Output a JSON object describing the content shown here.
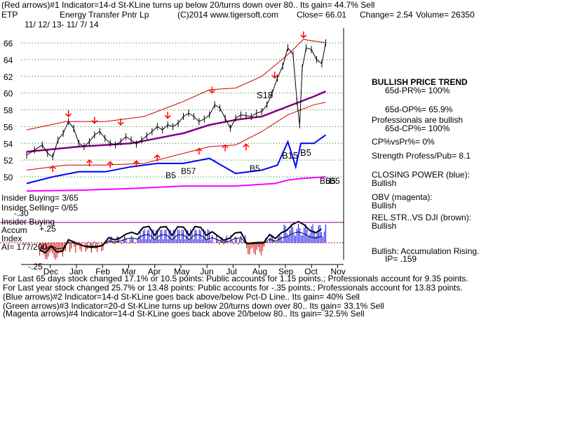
{
  "header": {
    "line1": "(Red arrows)#1 Indicator=14-d St-KLine turns up below 20/turns down over 80.. Its gain= 44.7% Sell",
    "ticker": "ETP",
    "company": "Energy Transfer Pntr Lp",
    "copyright": "(C)2014 www.tigersoft.com",
    "close": "Close=  66.01",
    "change": "Change= 2.54",
    "volume": "Volume=  26350",
    "date_range": "11/ 12/ 13-  11/ 7/ 14"
  },
  "chart_data": {
    "type": "line",
    "title": "",
    "y_ticks": [
      "66",
      "64",
      "62",
      "60",
      "58",
      "56",
      "54",
      "52",
      "50"
    ],
    "ylim": [
      49,
      67
    ],
    "months": [
      "Dec",
      "Jan",
      "Feb",
      "Mar",
      "Apr",
      "May",
      "Jun",
      "Jul",
      "Aug",
      "Sep",
      "Oct",
      "Nov"
    ],
    "x_month_index_range": [
      0,
      12
    ],
    "price_close": [
      [
        0.0,
        52.6
      ],
      [
        0.3,
        53.2
      ],
      [
        0.6,
        53.8
      ],
      [
        0.8,
        52.8
      ],
      [
        1.0,
        52.4
      ],
      [
        1.2,
        54.4
      ],
      [
        1.4,
        55.2
      ],
      [
        1.6,
        56.6
      ],
      [
        1.8,
        55.8
      ],
      [
        2.0,
        54.0
      ],
      [
        2.2,
        53.6
      ],
      [
        2.4,
        54.2
      ],
      [
        2.6,
        55.0
      ],
      [
        2.8,
        55.4
      ],
      [
        3.0,
        54.6
      ],
      [
        3.2,
        54.0
      ],
      [
        3.4,
        53.8
      ],
      [
        3.6,
        54.2
      ],
      [
        3.8,
        54.8
      ],
      [
        4.0,
        54.4
      ],
      [
        4.2,
        53.9
      ],
      [
        4.4,
        54.4
      ],
      [
        4.6,
        54.9
      ],
      [
        4.8,
        55.4
      ],
      [
        5.0,
        56.0
      ],
      [
        5.2,
        55.6
      ],
      [
        5.4,
        56.2
      ],
      [
        5.6,
        56.0
      ],
      [
        5.8,
        56.4
      ],
      [
        6.0,
        57.2
      ],
      [
        6.2,
        57.6
      ],
      [
        6.4,
        57.2
      ],
      [
        6.6,
        56.6
      ],
      [
        6.8,
        56.9
      ],
      [
        7.0,
        57.4
      ],
      [
        7.2,
        58.6
      ],
      [
        7.4,
        58.2
      ],
      [
        7.6,
        57.0
      ],
      [
        7.8,
        55.8
      ],
      [
        8.0,
        57.0
      ],
      [
        8.2,
        57.4
      ],
      [
        8.4,
        57.3
      ],
      [
        8.6,
        57.2
      ],
      [
        8.8,
        57.6
      ],
      [
        9.0,
        57.8
      ],
      [
        9.2,
        58.6
      ],
      [
        9.4,
        60.0
      ],
      [
        9.6,
        61.8
      ],
      [
        9.8,
        63.2
      ],
      [
        10.0,
        65.4
      ],
      [
        10.2,
        64.6
      ],
      [
        10.35,
        59.0
      ],
      [
        10.45,
        56.2
      ],
      [
        10.55,
        63.0
      ],
      [
        10.7,
        65.4
      ],
      [
        10.9,
        65.2
      ],
      [
        11.1,
        64.0
      ],
      [
        11.3,
        63.5
      ],
      [
        11.45,
        66.0
      ]
    ],
    "ma_65d": [
      [
        0.0,
        53.0
      ],
      [
        2.0,
        53.6
      ],
      [
        4.0,
        54.0
      ],
      [
        6.0,
        55.2
      ],
      [
        7.0,
        56.2
      ],
      [
        8.0,
        56.8
      ],
      [
        9.0,
        57.2
      ],
      [
        10.0,
        58.4
      ],
      [
        11.0,
        59.6
      ],
      [
        11.45,
        60.2
      ]
    ],
    "band_upper": [
      [
        0.0,
        55.6
      ],
      [
        1.5,
        56.6
      ],
      [
        3.0,
        56.6
      ],
      [
        4.5,
        57.2
      ],
      [
        6.0,
        59.0
      ],
      [
        7.0,
        60.4
      ],
      [
        8.0,
        60.6
      ],
      [
        9.0,
        62.0
      ],
      [
        10.0,
        64.6
      ],
      [
        10.6,
        66.4
      ],
      [
        11.45,
        66.0
      ]
    ],
    "band_lower": [
      [
        0.0,
        50.8
      ],
      [
        1.5,
        51.4
      ],
      [
        3.0,
        51.4
      ],
      [
        4.5,
        51.6
      ],
      [
        6.0,
        52.8
      ],
      [
        7.0,
        53.6
      ],
      [
        8.0,
        53.8
      ],
      [
        9.0,
        55.4
      ],
      [
        10.0,
        57.4
      ],
      [
        11.0,
        58.6
      ],
      [
        11.45,
        58.9
      ]
    ],
    "closing_power": [
      [
        0.0,
        49.2
      ],
      [
        1.0,
        50.0
      ],
      [
        2.0,
        50.6
      ],
      [
        3.0,
        50.6
      ],
      [
        4.0,
        51.2
      ],
      [
        5.0,
        51.6
      ],
      [
        6.0,
        51.6
      ],
      [
        7.0,
        52.2
      ],
      [
        8.0,
        50.4
      ],
      [
        9.0,
        50.8
      ],
      [
        9.6,
        51.4
      ],
      [
        10.0,
        54.2
      ],
      [
        10.3,
        51.2
      ],
      [
        10.5,
        54.0
      ],
      [
        11.0,
        54.0
      ],
      [
        11.45,
        55.0
      ]
    ],
    "obv": [
      [
        0.0,
        48.3
      ],
      [
        2.0,
        48.4
      ],
      [
        4.0,
        48.6
      ],
      [
        6.0,
        48.9
      ],
      [
        8.0,
        48.9
      ],
      [
        9.5,
        49.2
      ],
      [
        10.0,
        49.6
      ],
      [
        10.5,
        49.8
      ],
      [
        11.0,
        49.9
      ],
      [
        11.45,
        50.0
      ]
    ],
    "labels_price": [
      "S18",
      "B15",
      "B5"
    ],
    "labels_cp": [
      "B5",
      "B57",
      "B5",
      "B5",
      "B5"
    ],
    "labels_cp_alt": [
      "B5"
    ],
    "accum_index": {
      "labels": [
        "Insider Buying",
        "Accum",
        "Index",
        "+.25"
      ],
      "value_label": "AI= 177/200",
      "neg_label": "-.25",
      "neg_label2": "-.30",
      "zero_line": 0
    },
    "insider": {
      "buying": "Insider Buying= 3/65",
      "selling": "Insider Selling= 0/65"
    }
  },
  "right_panel": {
    "trend": "BULLISH PRICE TREND",
    "pr": "65d-PR%= 100%",
    "op": "65d-OP%= 65.9%",
    "prof": "Professionals are bullish",
    "cp": "65d-CP%= 100%",
    "cpvspr": "CP%vsPr%=  0%",
    "strength": "Strength Profess/Pub= 8.1",
    "closing_power": "CLOSING POWER (blue):",
    "cp_state": "Bullish",
    "obv": "OBV (magenta):",
    "obv_state": "Bullish",
    "relstr": "REL.STR..VS DJI (brown):",
    "relstr_state": "Bullish",
    "accum": "Bullish: Accumulation Rising.",
    "ip": "IP=  .159"
  },
  "footer": {
    "line1": "For Last 65 days stock changed  17.1% or  10.5 points:  Public accounts for  1.15 points.;  Professionals account for  9.35 points.",
    "line2": "For Last year stock changed  25.7% or  13.48 points:  Public accounts for -.35 points.;  Professionals account for  13.83 points.",
    "line3": "(Blue arrows)#2 Indicator=14-d St-KLine goes back above/below Pct-D Line.. Its gain= 40% Sell",
    "line4": "(Green arrows)#3 Indicator=20-d St-KLine turns up below 20/turns down over 80.. Its gain= 33.1% Sell",
    "line5": "(Magenta arrows)#4 Indicator=14-d St-KLine goes back above 20/below 80.. Its gain= 32.5% Sell"
  },
  "colors": {
    "price": "#000000",
    "band": "#cc0000",
    "ma": "#800080",
    "closing_power": "#0000ff",
    "obv": "#ff00ff",
    "accum_pos": "#0000ff",
    "accum_neg": "#cc0000",
    "grid": "#008000",
    "arrow": "#ff0000"
  }
}
